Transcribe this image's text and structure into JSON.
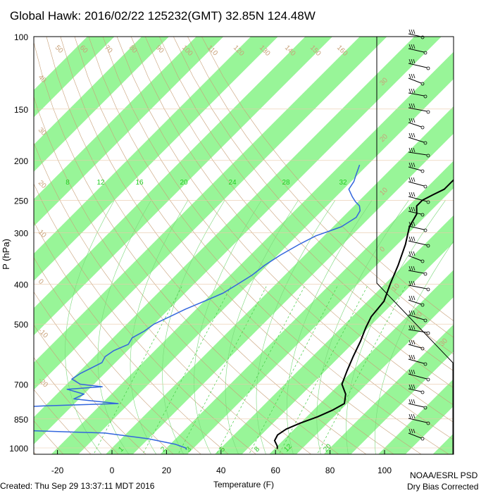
{
  "chart_data": {
    "type": "skew-t",
    "title": "Global Hawk: 2016/02/22 125232(GMT) 32.85N 124.48W",
    "ylabel": "P (hPa)",
    "xlabel": "Temperature (F)",
    "y_ticks": [
      100,
      150,
      200,
      250,
      300,
      400,
      500,
      700,
      850,
      1000
    ],
    "x_ticks": [
      -20,
      0,
      20,
      40,
      60,
      80,
      100
    ],
    "xlim": [
      -29,
      112
    ],
    "ylim": [
      1050,
      100
    ],
    "potential_temp_labels": [
      50,
      60,
      70,
      80,
      90,
      100,
      110,
      120,
      130,
      140,
      150,
      160
    ],
    "wet_bulb_labels": [
      40,
      30,
      20,
      10,
      0,
      -10,
      -20
    ],
    "side_isotherm_labels": [
      30,
      20,
      10,
      0,
      10,
      20,
      30
    ],
    "mixing_ratio_labels": [
      "8",
      "12",
      "16",
      "20",
      "24",
      "28",
      "32"
    ],
    "mixing_ratio_bottom_labels": [
      "1",
      "2",
      "3",
      "5",
      "8",
      "12",
      "20"
    ],
    "series": [
      {
        "name": "Temperature",
        "color": "#000000",
        "points": [
          [
            100,
            37
          ],
          [
            105,
            38
          ],
          [
            110,
            34
          ],
          [
            115,
            27
          ],
          [
            120,
            22
          ],
          [
            125,
            21
          ],
          [
            130,
            21
          ],
          [
            137,
            21
          ],
          [
            142,
            20
          ],
          [
            150,
            18
          ],
          [
            160,
            20
          ],
          [
            170,
            24
          ],
          [
            180,
            26
          ],
          [
            192,
            25
          ],
          [
            202,
            27
          ],
          [
            212,
            27
          ],
          [
            225,
            27
          ],
          [
            235,
            27
          ],
          [
            242,
            25
          ],
          [
            250,
            23
          ],
          [
            258,
            23
          ],
          [
            270,
            26
          ],
          [
            290,
            28
          ],
          [
            320,
            33
          ],
          [
            360,
            38
          ],
          [
            400,
            42
          ],
          [
            440,
            46
          ],
          [
            480,
            47
          ],
          [
            510,
            49
          ],
          [
            550,
            52
          ],
          [
            600,
            55
          ],
          [
            650,
            58
          ],
          [
            700,
            61
          ],
          [
            740,
            66
          ],
          [
            780,
            69
          ],
          [
            810,
            67
          ],
          [
            840,
            64
          ],
          [
            870,
            60
          ],
          [
            900,
            57
          ],
          [
            930,
            56
          ],
          [
            960,
            57
          ],
          [
            990,
            60
          ],
          [
            1005,
            61
          ]
        ]
      },
      {
        "name": "Dewpoint",
        "color": "#3366dd",
        "points": [
          [
            205,
            -13
          ],
          [
            215,
            -11
          ],
          [
            225,
            -9
          ],
          [
            235,
            -8
          ],
          [
            245,
            -4
          ],
          [
            252,
            -1
          ],
          [
            258,
            2
          ],
          [
            265,
            4
          ],
          [
            275,
            5
          ],
          [
            290,
            3
          ],
          [
            305,
            -3
          ],
          [
            320,
            -6
          ],
          [
            340,
            -9
          ],
          [
            360,
            -11
          ],
          [
            380,
            -12
          ],
          [
            400,
            -14
          ],
          [
            420,
            -16
          ],
          [
            440,
            -20
          ],
          [
            460,
            -24
          ],
          [
            480,
            -27
          ],
          [
            500,
            -30
          ],
          [
            520,
            -31
          ],
          [
            540,
            -33
          ],
          [
            560,
            -32
          ],
          [
            580,
            -35
          ],
          [
            600,
            -36
          ],
          [
            620,
            -35
          ],
          [
            640,
            -37
          ],
          [
            660,
            -39
          ],
          [
            680,
            -40
          ],
          [
            700,
            -35
          ],
          [
            710,
            -26
          ],
          [
            720,
            -38
          ],
          [
            740,
            -30
          ],
          [
            760,
            -32
          ],
          [
            780,
            -14
          ],
          [
            790,
            -40
          ],
          [
            800,
            -55
          ],
          [
            820,
            -58
          ],
          [
            840,
            -48
          ],
          [
            860,
            -58
          ],
          [
            880,
            -61
          ],
          [
            900,
            -54
          ],
          [
            920,
            -8
          ],
          [
            950,
            10
          ],
          [
            980,
            22
          ],
          [
            1000,
            27
          ],
          [
            1010,
            28
          ]
        ]
      }
    ]
  },
  "footer": {
    "created": "Created: Thu Sep 29 13:37:11 MDT 2016",
    "org": "NOAA/ESRL PSD",
    "note": "Dry Bias Corrected"
  },
  "colors": {
    "band": "#98f598",
    "dry_adiabat": "#c8a078",
    "moist_adiabat": "#7ad87a",
    "mixing_ratio": "#44cc44",
    "temperature": "#000000",
    "dewpoint": "#3366dd"
  }
}
